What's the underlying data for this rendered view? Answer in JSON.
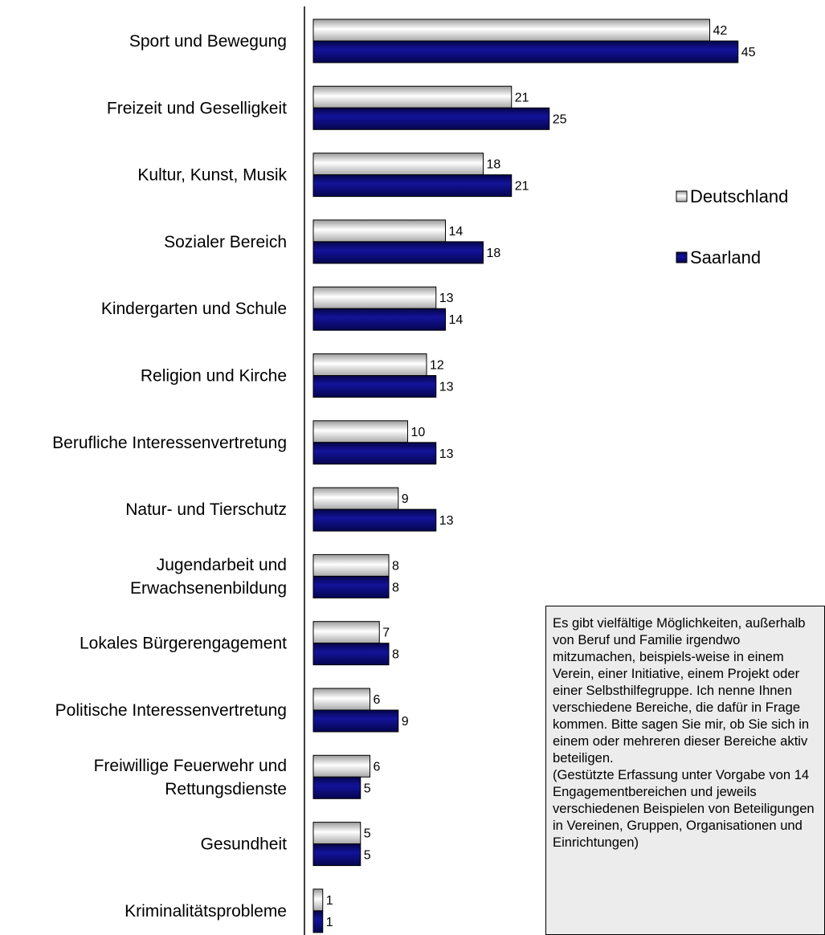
{
  "chart_data": {
    "type": "bar",
    "orientation": "horizontal",
    "categories": [
      "Sport und Bewegung",
      "Freizeit und Geselligkeit",
      "Kultur, Kunst, Musik",
      "Sozialer Bereich",
      "Kindergarten und Schule",
      "Religion und Kirche",
      "Berufliche Interessenvertretung",
      "Natur- und Tierschutz",
      "Jugendarbeit und Erwachsenenbildung",
      "Lokales Bürgerengagement",
      "Politische Interessenvertretung",
      "Freiwillige Feuerwehr und Rettungsdienste",
      "Gesundheit",
      "Kriminalitätsprobleme"
    ],
    "category_lines": [
      [
        "Sport und Bewegung"
      ],
      [
        "Freizeit und Geselligkeit"
      ],
      [
        "Kultur, Kunst, Musik"
      ],
      [
        "Sozialer Bereich"
      ],
      [
        "Kindergarten und Schule"
      ],
      [
        "Religion und Kirche"
      ],
      [
        "Berufliche Interessenvertretung"
      ],
      [
        "Natur- und Tierschutz"
      ],
      [
        "Jugendarbeit und",
        "Erwachsenenbildung"
      ],
      [
        "Lokales Bürgerengagement"
      ],
      [
        "Politische Interessenvertretung"
      ],
      [
        "Freiwillige Feuerwehr und",
        "Rettungsdienste"
      ],
      [
        "Gesundheit"
      ],
      [
        "Kriminalitätsprobleme"
      ]
    ],
    "series": [
      {
        "name": "Deutschland",
        "color": "#e6e6e6",
        "values": [
          42,
          21,
          18,
          14,
          13,
          12,
          10,
          9,
          8,
          7,
          6,
          6,
          5,
          1
        ]
      },
      {
        "name": "Saarland",
        "color": "#0a0a78",
        "values": [
          45,
          25,
          21,
          18,
          14,
          13,
          13,
          13,
          8,
          8,
          9,
          5,
          5,
          1
        ]
      }
    ],
    "xlim": [
      0,
      54
    ],
    "title": "",
    "xlabel": "",
    "ylabel": "",
    "grid": false,
    "legend": "right"
  },
  "note": {
    "paragraph1": "Es gibt vielfältige Möglichkeiten, außerhalb von Beruf und Familie irgendwo mitzumachen, beispiels-weise in einem Verein, einer Initiative, einem Projekt oder einer Selbsthilfegruppe. Ich nenne Ihnen verschiedene Bereiche, die dafür in Frage kommen. Bitte sagen Sie mir, ob Sie sich in einem oder mehreren dieser Bereiche aktiv beteiligen.",
    "paragraph2": "(Gestützte Erfassung unter Vorgabe von 14 Engagementbereichen und jeweils verschiedenen Beispielen von Beteiligungen in Vereinen, Gruppen, Organisationen und Einrichtungen)"
  }
}
